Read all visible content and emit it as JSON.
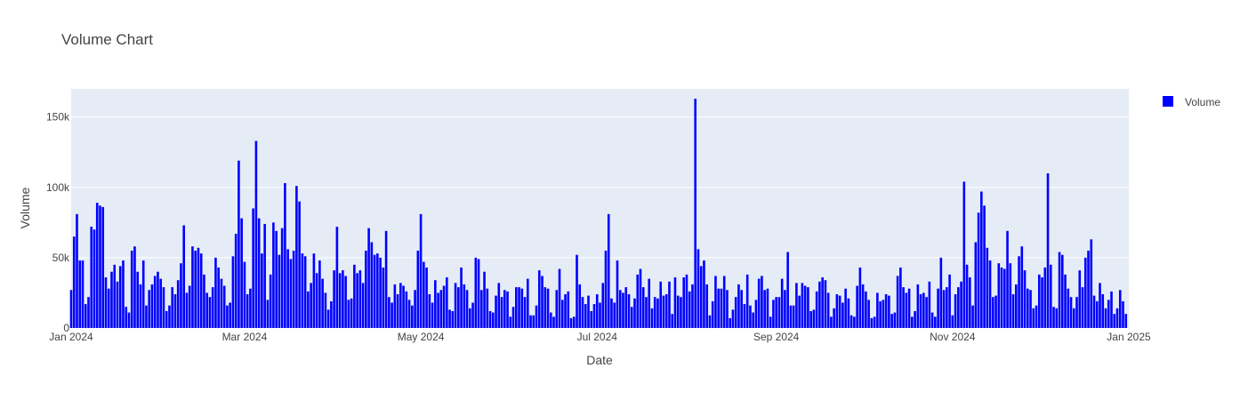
{
  "chart_data": {
    "type": "bar",
    "title": "Volume Chart",
    "xlabel": "Date",
    "ylabel": "Volume",
    "ylim": [
      0,
      170000
    ],
    "grid": true,
    "legend_position": "top-right",
    "legend": [
      "Volume"
    ],
    "x_start": "2024-01-01",
    "x_end": "2025-01-01",
    "x_ticks": [
      "Jan 2024",
      "Mar 2024",
      "May 2024",
      "Jul 2024",
      "Sep 2024",
      "Nov 2024",
      "Jan 2025"
    ],
    "y_ticks": [
      "0",
      "50k",
      "100k",
      "150k"
    ],
    "series": [
      {
        "name": "Volume",
        "color": "#0000ff",
        "x": [
          "2024-01-01",
          "2024-01-02",
          "2024-01-03",
          "2024-01-04",
          "2024-01-05",
          "2024-01-06",
          "2024-01-07",
          "2024-01-08",
          "2024-01-09",
          "2024-01-10",
          "2024-01-11",
          "2024-01-12",
          "2024-01-13",
          "2024-01-14",
          "2024-01-15",
          "2024-01-16",
          "2024-01-17",
          "2024-01-18",
          "2024-01-19",
          "2024-01-20",
          "2024-01-21",
          "2024-01-22",
          "2024-01-23",
          "2024-01-24",
          "2024-01-25",
          "2024-01-26",
          "2024-01-27",
          "2024-01-28",
          "2024-01-29",
          "2024-01-30",
          "2024-01-31",
          "2024-02-01",
          "2024-02-02",
          "2024-02-03",
          "2024-02-04",
          "2024-02-05",
          "2024-02-06",
          "2024-02-07",
          "2024-02-08",
          "2024-02-09",
          "2024-02-10",
          "2024-02-11",
          "2024-02-12",
          "2024-02-13",
          "2024-02-14",
          "2024-02-15",
          "2024-02-16",
          "2024-02-17",
          "2024-02-18",
          "2024-02-19",
          "2024-02-20",
          "2024-02-21",
          "2024-02-22",
          "2024-02-23",
          "2024-02-24",
          "2024-02-25",
          "2024-02-26",
          "2024-02-27",
          "2024-02-28",
          "2024-02-29",
          "2024-03-01",
          "2024-03-02",
          "2024-03-03",
          "2024-03-04",
          "2024-03-05",
          "2024-03-06",
          "2024-03-07",
          "2024-03-08",
          "2024-03-09",
          "2024-03-10",
          "2024-03-11",
          "2024-03-12",
          "2024-03-13",
          "2024-03-14",
          "2024-03-15",
          "2024-03-16",
          "2024-03-17",
          "2024-03-18",
          "2024-03-19",
          "2024-03-20",
          "2024-03-21",
          "2024-03-22",
          "2024-03-23",
          "2024-03-24",
          "2024-03-25",
          "2024-03-26",
          "2024-03-27",
          "2024-03-28",
          "2024-03-29",
          "2024-03-30",
          "2024-03-31",
          "2024-04-01",
          "2024-04-02",
          "2024-04-03",
          "2024-04-04",
          "2024-04-05",
          "2024-04-06",
          "2024-04-07",
          "2024-04-08",
          "2024-04-09",
          "2024-04-10",
          "2024-04-11",
          "2024-04-12",
          "2024-04-13",
          "2024-04-14",
          "2024-04-15",
          "2024-04-16",
          "2024-04-17",
          "2024-04-18",
          "2024-04-19",
          "2024-04-20",
          "2024-04-21",
          "2024-04-22",
          "2024-04-23",
          "2024-04-24",
          "2024-04-25",
          "2024-04-26",
          "2024-04-27",
          "2024-04-28",
          "2024-04-29",
          "2024-04-30",
          "2024-05-01",
          "2024-05-02",
          "2024-05-03",
          "2024-05-04",
          "2024-05-05",
          "2024-05-06",
          "2024-05-07",
          "2024-05-08",
          "2024-05-09",
          "2024-05-10",
          "2024-05-11",
          "2024-05-12",
          "2024-05-13",
          "2024-05-14",
          "2024-05-15",
          "2024-05-16",
          "2024-05-17",
          "2024-05-18",
          "2024-05-19",
          "2024-05-20",
          "2024-05-21",
          "2024-05-22",
          "2024-05-23",
          "2024-05-24",
          "2024-05-25",
          "2024-05-26",
          "2024-05-27",
          "2024-05-28",
          "2024-05-29",
          "2024-05-30",
          "2024-05-31",
          "2024-06-01",
          "2024-06-02",
          "2024-06-03",
          "2024-06-04",
          "2024-06-05",
          "2024-06-06",
          "2024-06-07",
          "2024-06-08",
          "2024-06-09",
          "2024-06-10",
          "2024-06-11",
          "2024-06-12",
          "2024-06-13",
          "2024-06-14",
          "2024-06-15",
          "2024-06-16",
          "2024-06-17",
          "2024-06-18",
          "2024-06-19",
          "2024-06-20",
          "2024-06-21",
          "2024-06-22",
          "2024-06-23",
          "2024-06-24",
          "2024-06-25",
          "2024-06-26",
          "2024-06-27",
          "2024-06-28",
          "2024-06-29",
          "2024-06-30",
          "2024-07-01",
          "2024-07-02",
          "2024-07-03",
          "2024-07-04",
          "2024-07-05",
          "2024-07-06",
          "2024-07-07",
          "2024-07-08",
          "2024-07-09",
          "2024-07-10",
          "2024-07-11",
          "2024-07-12",
          "2024-07-13",
          "2024-07-14",
          "2024-07-15",
          "2024-07-16",
          "2024-07-17",
          "2024-07-18",
          "2024-07-19",
          "2024-07-20",
          "2024-07-21",
          "2024-07-22",
          "2024-07-23",
          "2024-07-24",
          "2024-07-25",
          "2024-07-26",
          "2024-07-27",
          "2024-07-28",
          "2024-07-29",
          "2024-07-30",
          "2024-07-31",
          "2024-08-01",
          "2024-08-02",
          "2024-08-03",
          "2024-08-04",
          "2024-08-05",
          "2024-08-06",
          "2024-08-07",
          "2024-08-08",
          "2024-08-09",
          "2024-08-10",
          "2024-08-11",
          "2024-08-12",
          "2024-08-13",
          "2024-08-14",
          "2024-08-15",
          "2024-08-16",
          "2024-08-17",
          "2024-08-18",
          "2024-08-19",
          "2024-08-20",
          "2024-08-21",
          "2024-08-22",
          "2024-08-23",
          "2024-08-24",
          "2024-08-25",
          "2024-08-26",
          "2024-08-27",
          "2024-08-28",
          "2024-08-29",
          "2024-08-30",
          "2024-08-31",
          "2024-09-01",
          "2024-09-02",
          "2024-09-03",
          "2024-09-04",
          "2024-09-05",
          "2024-09-06",
          "2024-09-07",
          "2024-09-08",
          "2024-09-09",
          "2024-09-10",
          "2024-09-11",
          "2024-09-12",
          "2024-09-13",
          "2024-09-14",
          "2024-09-15",
          "2024-09-16",
          "2024-09-17",
          "2024-09-18",
          "2024-09-19",
          "2024-09-20",
          "2024-09-21",
          "2024-09-22",
          "2024-09-23",
          "2024-09-24",
          "2024-09-25",
          "2024-09-26",
          "2024-09-27",
          "2024-09-28",
          "2024-09-29",
          "2024-09-30",
          "2024-10-01",
          "2024-10-02",
          "2024-10-03",
          "2024-10-04",
          "2024-10-05",
          "2024-10-06",
          "2024-10-07",
          "2024-10-08",
          "2024-10-09",
          "2024-10-10",
          "2024-10-11",
          "2024-10-12",
          "2024-10-13",
          "2024-10-14",
          "2024-10-15",
          "2024-10-16",
          "2024-10-17",
          "2024-10-18",
          "2024-10-19",
          "2024-10-20",
          "2024-10-21",
          "2024-10-22",
          "2024-10-23",
          "2024-10-24",
          "2024-10-25",
          "2024-10-26",
          "2024-10-27",
          "2024-10-28",
          "2024-10-29",
          "2024-10-30",
          "2024-10-31",
          "2024-11-01",
          "2024-11-02",
          "2024-11-03",
          "2024-11-04",
          "2024-11-05",
          "2024-11-06",
          "2024-11-07",
          "2024-11-08",
          "2024-11-09",
          "2024-11-10",
          "2024-11-11",
          "2024-11-12",
          "2024-11-13",
          "2024-11-14",
          "2024-11-15",
          "2024-11-16",
          "2024-11-17",
          "2024-11-18",
          "2024-11-19",
          "2024-11-20",
          "2024-11-21",
          "2024-11-22",
          "2024-11-23",
          "2024-11-24",
          "2024-11-25",
          "2024-11-26",
          "2024-11-27",
          "2024-11-28",
          "2024-11-29",
          "2024-11-30",
          "2024-12-01",
          "2024-12-02",
          "2024-12-03",
          "2024-12-04",
          "2024-12-05",
          "2024-12-06",
          "2024-12-07",
          "2024-12-08",
          "2024-12-09",
          "2024-12-10",
          "2024-12-11",
          "2024-12-12",
          "2024-12-13",
          "2024-12-14",
          "2024-12-15",
          "2024-12-16",
          "2024-12-17",
          "2024-12-18",
          "2024-12-19",
          "2024-12-20",
          "2024-12-21",
          "2024-12-22",
          "2024-12-23",
          "2024-12-24",
          "2024-12-25",
          "2024-12-26",
          "2024-12-27",
          "2024-12-28",
          "2024-12-29",
          "2024-12-30",
          "2024-12-31"
        ],
        "values": [
          27000,
          65000,
          81000,
          48000,
          48000,
          17000,
          22000,
          72000,
          70000,
          89000,
          87000,
          86000,
          36000,
          28000,
          40000,
          45000,
          33000,
          44000,
          48000,
          15000,
          11000,
          55000,
          58000,
          40000,
          31000,
          48000,
          16000,
          27000,
          31000,
          37000,
          40000,
          35000,
          29000,
          12000,
          16000,
          29000,
          24000,
          34000,
          46000,
          73000,
          25000,
          30000,
          58000,
          55000,
          57000,
          53000,
          38000,
          25000,
          22000,
          29000,
          50000,
          43000,
          35000,
          30000,
          16000,
          18000,
          51000,
          67000,
          119000,
          78000,
          47000,
          24000,
          28000,
          85000,
          133000,
          78000,
          53000,
          74000,
          20000,
          38000,
          75000,
          69000,
          52000,
          71000,
          103000,
          56000,
          49000,
          55000,
          101000,
          90000,
          53000,
          51000,
          26000,
          32000,
          53000,
          39000,
          48000,
          35000,
          25000,
          13000,
          19000,
          41000,
          72000,
          39000,
          41000,
          37000,
          20000,
          21000,
          45000,
          39000,
          41000,
          32000,
          55000,
          71000,
          61000,
          52000,
          53000,
          50000,
          43000,
          69000,
          22000,
          18000,
          31000,
          24000,
          32000,
          30000,
          26000,
          20000,
          16000,
          27000,
          55000,
          81000,
          47000,
          43000,
          24000,
          18000,
          34000,
          25000,
          27000,
          30000,
          36000,
          13000,
          12000,
          32000,
          29000,
          43000,
          31000,
          27000,
          14000,
          18000,
          50000,
          49000,
          27000,
          40000,
          28000,
          12000,
          11000,
          23000,
          32000,
          22000,
          27000,
          26000,
          8000,
          15000,
          29000,
          29000,
          28000,
          22000,
          35000,
          9000,
          9000,
          16000,
          41000,
          37000,
          29000,
          28000,
          11000,
          8000,
          27000,
          42000,
          20000,
          24000,
          26000,
          7000,
          8000,
          52000,
          31000,
          22000,
          17000,
          23000,
          12000,
          17000,
          24000,
          18000,
          32000,
          55000,
          81000,
          21000,
          18000,
          48000,
          27000,
          25000,
          29000,
          24000,
          15000,
          21000,
          38000,
          42000,
          29000,
          22000,
          35000,
          14000,
          22000,
          21000,
          33000,
          23000,
          24000,
          33000,
          10000,
          36000,
          23000,
          22000,
          36000,
          38000,
          26000,
          31000,
          163000,
          56000,
          44000,
          48000,
          31000,
          9000,
          19000,
          37000,
          28000,
          28000,
          37000,
          27000,
          7000,
          13000,
          22000,
          31000,
          27000,
          17000,
          38000,
          16000,
          11000,
          20000,
          35000,
          37000,
          27000,
          28000,
          8000,
          20000,
          22000,
          22000,
          35000,
          27000,
          54000,
          16000,
          16000,
          32000,
          23000,
          32000,
          30000,
          29000,
          12000,
          13000,
          26000,
          33000,
          36000,
          34000,
          25000,
          8000,
          14000,
          24000,
          23000,
          18000,
          28000,
          21000,
          9000,
          8000,
          30000,
          43000,
          31000,
          26000,
          20000,
          7000,
          8000,
          25000,
          19000,
          20000,
          24000,
          23000,
          10000,
          11000,
          37000,
          43000,
          29000,
          25000,
          28000,
          8000,
          12000,
          31000,
          24000,
          25000,
          22000,
          33000,
          11000,
          8000,
          28000,
          50000,
          27000,
          29000,
          38000,
          9000,
          24000,
          29000,
          33000,
          104000,
          45000,
          36000,
          16000,
          61000,
          82000,
          97000,
          87000,
          57000,
          48000,
          22000,
          23000,
          46000,
          43000,
          42000,
          69000,
          46000,
          24000,
          31000,
          51000,
          58000,
          41000,
          28000,
          27000,
          14000,
          16000,
          38000,
          36000,
          43000,
          110000,
          45000,
          15000,
          14000,
          54000,
          52000,
          38000,
          28000,
          22000,
          14000,
          22000,
          41000,
          29000,
          50000,
          55000,
          63000,
          23000,
          19000,
          32000,
          24000,
          14000,
          20000,
          26000,
          10000,
          14000,
          27000,
          19000,
          10000
        ]
      }
    ]
  }
}
